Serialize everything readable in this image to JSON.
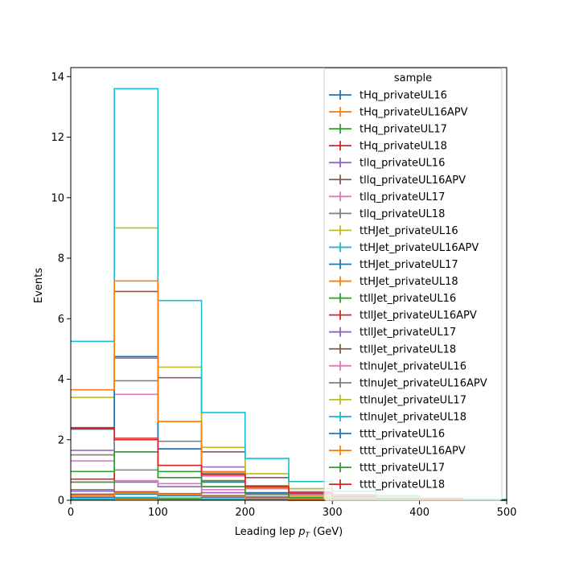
{
  "chart_data": {
    "type": "histogram-step",
    "xlabel_main": "Leading lep ",
    "xlabel_math_base": "p",
    "xlabel_math_sub": "T",
    "xlabel_unit": " (GeV)",
    "ylabel": "Events",
    "xlim": [
      0,
      500
    ],
    "ylim": [
      0,
      14.3
    ],
    "xticks": [
      "0",
      "100",
      "200",
      "300",
      "400",
      "500"
    ],
    "yticks": [
      "0",
      "2",
      "4",
      "6",
      "8",
      "10",
      "12",
      "14"
    ],
    "bin_edges": [
      0,
      50,
      100,
      150,
      200,
      250,
      300,
      350,
      400,
      450,
      500
    ],
    "legend_title": "sample",
    "legend_position": "upper right",
    "series": [
      {
        "name": "tHq_privateUL16",
        "color": "#1f77b4",
        "values": [
          0.02,
          0.05,
          0.03,
          0.02,
          0.01,
          0.0,
          0.0,
          0.0,
          0.0,
          0.0
        ]
      },
      {
        "name": "tHq_privateUL16APV",
        "color": "#ff7f0e",
        "values": [
          0.02,
          0.04,
          0.03,
          0.02,
          0.01,
          0.0,
          0.0,
          0.0,
          0.0,
          0.0
        ]
      },
      {
        "name": "tHq_privateUL17",
        "color": "#2ca02c",
        "values": [
          0.03,
          0.07,
          0.05,
          0.03,
          0.01,
          0.01,
          0.0,
          0.0,
          0.0,
          0.0
        ]
      },
      {
        "name": "tHq_privateUL18",
        "color": "#d62728",
        "values": [
          0.05,
          0.1,
          0.07,
          0.04,
          0.02,
          0.01,
          0.0,
          0.0,
          0.0,
          0.0
        ]
      },
      {
        "name": "tllq_privateUL16",
        "color": "#9467bd",
        "values": [
          0.3,
          0.6,
          0.45,
          0.25,
          0.12,
          0.06,
          0.03,
          0.01,
          0.01,
          0.0
        ]
      },
      {
        "name": "tllq_privateUL16APV",
        "color": "#8c564b",
        "values": [
          0.2,
          0.28,
          0.22,
          0.15,
          0.08,
          0.04,
          0.02,
          0.01,
          0.0,
          0.0
        ]
      },
      {
        "name": "tllq_privateUL17",
        "color": "#e377c2",
        "values": [
          0.6,
          0.65,
          0.55,
          0.35,
          0.18,
          0.09,
          0.04,
          0.02,
          0.01,
          0.0
        ]
      },
      {
        "name": "tllq_privateUL18",
        "color": "#7f7f7f",
        "values": [
          0.35,
          1.0,
          0.75,
          0.45,
          0.22,
          0.1,
          0.05,
          0.02,
          0.01,
          0.0
        ]
      },
      {
        "name": "ttHJet_privateUL16",
        "color": "#bcbd22",
        "values": [
          0.05,
          0.1,
          0.08,
          0.05,
          0.03,
          0.02,
          0.01,
          0.0,
          0.0,
          0.0
        ]
      },
      {
        "name": "ttHJet_privateUL16APV",
        "color": "#17becf",
        "values": [
          0.05,
          0.1,
          0.07,
          0.05,
          0.03,
          0.01,
          0.01,
          0.0,
          0.0,
          0.0
        ]
      },
      {
        "name": "ttHJet_privateUL17",
        "color": "#1f77b4",
        "values": [
          0.1,
          0.2,
          0.15,
          0.1,
          0.05,
          0.03,
          0.01,
          0.01,
          0.0,
          0.0
        ]
      },
      {
        "name": "ttHJet_privateUL18",
        "color": "#ff7f0e",
        "values": [
          0.15,
          0.25,
          0.2,
          0.12,
          0.06,
          0.03,
          0.02,
          0.01,
          0.0,
          0.0
        ]
      },
      {
        "name": "ttllJet_privateUL16",
        "color": "#2ca02c",
        "values": [
          0.6,
          1.6,
          0.95,
          0.65,
          0.38,
          0.2,
          0.1,
          0.05,
          0.02,
          0.01
        ]
      },
      {
        "name": "ttllJet_privateUL16APV",
        "color": "#d62728",
        "values": [
          0.7,
          2.05,
          1.15,
          0.85,
          0.45,
          0.24,
          0.12,
          0.06,
          0.03,
          0.01
        ]
      },
      {
        "name": "ttllJet_privateUL17",
        "color": "#9467bd",
        "values": [
          1.65,
          4.7,
          2.6,
          1.1,
          0.48,
          0.28,
          0.14,
          0.07,
          0.03,
          0.01
        ]
      },
      {
        "name": "ttllJet_privateUL18",
        "color": "#8c564b",
        "values": [
          2.4,
          6.9,
          4.05,
          1.6,
          0.75,
          0.38,
          0.18,
          0.09,
          0.04,
          0.02
        ]
      },
      {
        "name": "ttlnuJet_privateUL16",
        "color": "#e377c2",
        "values": [
          1.3,
          3.5,
          1.7,
          0.8,
          0.38,
          0.2,
          0.09,
          0.04,
          0.02,
          0.01
        ]
      },
      {
        "name": "ttlnuJet_privateUL16APV",
        "color": "#7f7f7f",
        "values": [
          1.5,
          3.95,
          1.95,
          0.9,
          0.42,
          0.22,
          0.1,
          0.05,
          0.02,
          0.01
        ]
      },
      {
        "name": "ttlnuJet_privateUL17",
        "color": "#bcbd22",
        "values": [
          3.4,
          9.0,
          4.4,
          1.75,
          0.88,
          0.38,
          0.2,
          0.1,
          0.04,
          0.02
        ]
      },
      {
        "name": "ttlnuJet_privateUL18",
        "color": "#17becf",
        "values": [
          5.25,
          13.6,
          6.6,
          2.9,
          1.38,
          0.62,
          0.3,
          0.15,
          0.07,
          0.03
        ]
      },
      {
        "name": "tttt_privateUL16",
        "color": "#1f77b4",
        "values": [
          2.35,
          4.75,
          1.7,
          0.6,
          0.25,
          0.1,
          0.05,
          0.02,
          0.01,
          0.0
        ]
      },
      {
        "name": "tttt_privateUL16APV",
        "color": "#ff7f0e",
        "values": [
          3.65,
          7.25,
          2.6,
          0.95,
          0.4,
          0.16,
          0.07,
          0.03,
          0.01,
          0.0
        ]
      },
      {
        "name": "tttt_privateUL17",
        "color": "#2ca02c",
        "values": [
          0.95,
          1.6,
          0.75,
          0.45,
          0.22,
          0.1,
          0.04,
          0.02,
          0.01,
          0.0
        ]
      },
      {
        "name": "tttt_privateUL18",
        "color": "#d62728",
        "values": [
          2.38,
          2.0,
          1.15,
          0.85,
          0.45,
          0.24,
          0.12,
          0.06,
          0.03,
          0.01
        ]
      }
    ]
  }
}
